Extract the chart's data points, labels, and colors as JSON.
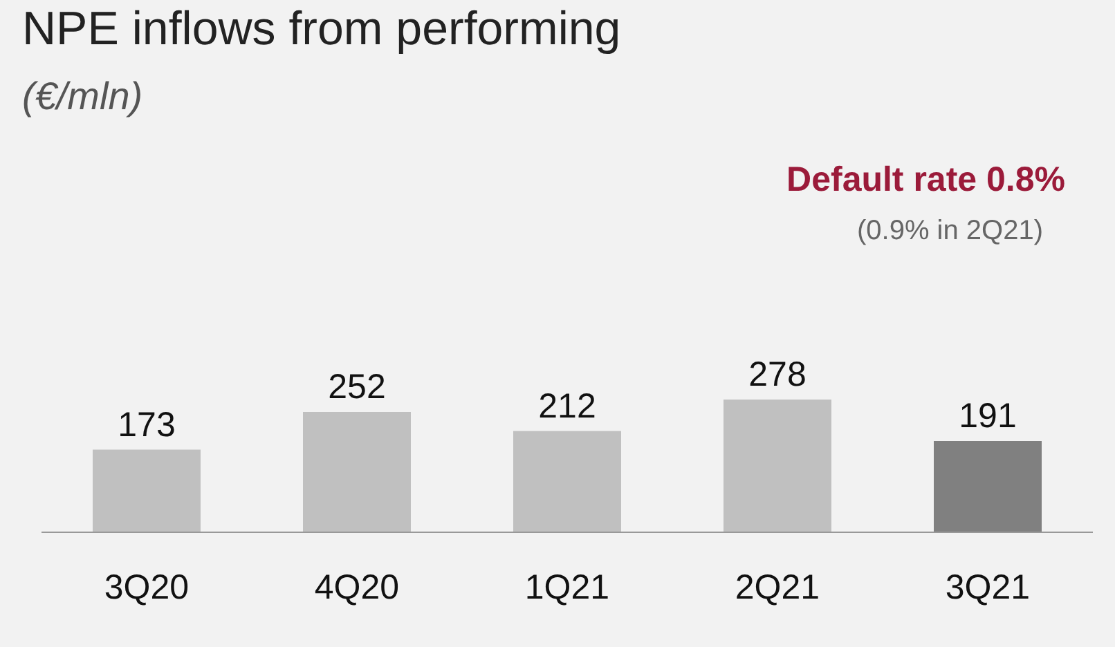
{
  "chart_data": {
    "type": "bar",
    "title": "NPE inflows from performing",
    "subtitle": "(€/mln)",
    "annotations": [
      "Default rate 0.8%",
      "(0.9% in 2Q21)"
    ],
    "categories": [
      "3Q20",
      "4Q20",
      "1Q21",
      "2Q21",
      "3Q21"
    ],
    "values": [
      173,
      252,
      212,
      278,
      191
    ],
    "colors": [
      "#c0c0c0",
      "#c0c0c0",
      "#c0c0c0",
      "#c0c0c0",
      "#808080"
    ],
    "data_labels": true
  }
}
